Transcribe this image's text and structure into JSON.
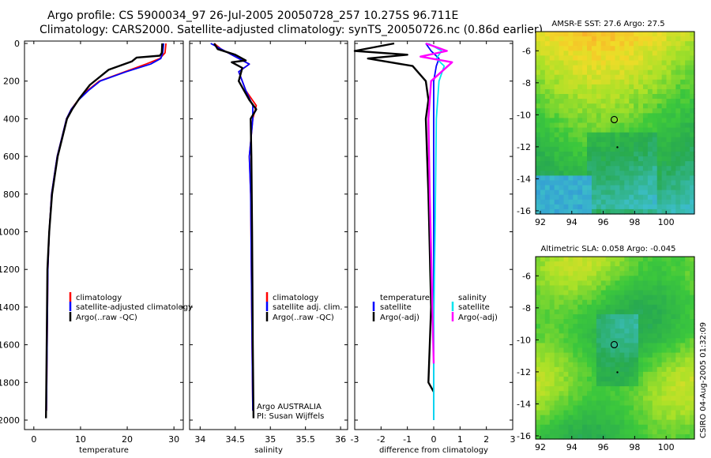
{
  "header": {
    "line1": "Argo profile: CS 5900034_97 26-Jul-2005 20050728_257 10.275S 96.711E",
    "line2": "Climatology: CARS2000. Satellite-adjusted climatology: synTS_20050726.nc (0.86d earlier)"
  },
  "colors": {
    "climatology": "#ff0000",
    "satellite": "#0000ff",
    "argo": "#000000",
    "sal_satellite": "#00e5ee",
    "sal_argo": "#ff00ff"
  },
  "chart_data": [
    {
      "type": "line",
      "id": "temp",
      "xlabel": "temperature",
      "ylabel": "",
      "xlim": [
        -2,
        32
      ],
      "ylim": [
        2050,
        0
      ],
      "xticks": [
        "0",
        "10",
        "20",
        "30"
      ],
      "xtick_values": [
        0,
        10,
        20,
        30
      ],
      "yticks": [
        "0",
        "200",
        "400",
        "600",
        "800",
        "1000",
        "1200",
        "1400",
        "1600",
        "1800",
        "2000"
      ],
      "legend": [
        "climatology",
        "satellite-adjusted climatology",
        "Argo(..raw -QC)"
      ],
      "series": [
        {
          "name": "climatology",
          "color": "#ff0000",
          "x": [
            28.3,
            28.1,
            27.0,
            24.0,
            19.5,
            14.0,
            11.5,
            9.5,
            8.0,
            7.0,
            6.0,
            5.0,
            4.4,
            3.8,
            3.3,
            3.0,
            2.7
          ],
          "y": [
            0,
            50,
            80,
            110,
            150,
            200,
            250,
            300,
            350,
            400,
            500,
            600,
            700,
            800,
            1000,
            1200,
            1950
          ]
        },
        {
          "name": "satellite",
          "color": "#0000ff",
          "x": [
            27.8,
            27.6,
            27.2,
            25.0,
            19.8,
            14.2,
            11.7,
            9.6,
            8.0,
            7.0,
            6.0,
            5.0,
            4.4,
            3.8,
            3.3,
            3.0,
            2.7
          ],
          "y": [
            0,
            50,
            80,
            110,
            150,
            200,
            250,
            300,
            350,
            400,
            500,
            600,
            700,
            800,
            1000,
            1200,
            1950
          ]
        },
        {
          "name": "Argo",
          "color": "#000000",
          "x": [
            27.5,
            27.4,
            27.0,
            22.0,
            21.0,
            16.0,
            12.0,
            9.8,
            8.2,
            7.1,
            6.1,
            5.1,
            4.5,
            3.9,
            3.3,
            2.9,
            2.6
          ],
          "y": [
            0,
            50,
            65,
            75,
            95,
            140,
            220,
            290,
            350,
            400,
            500,
            600,
            700,
            800,
            1000,
            1200,
            1990
          ]
        }
      ]
    },
    {
      "type": "line",
      "id": "sal",
      "xlabel": "salinity",
      "ylabel": "",
      "xlim": [
        33.85,
        36.1
      ],
      "ylim": [
        2050,
        0
      ],
      "xticks": [
        "34",
        "34.5",
        "35",
        "35.5",
        "36"
      ],
      "xtick_values": [
        34,
        34.5,
        35,
        35.5,
        36
      ],
      "legend": [
        "climatology",
        "satellite adj. clim.",
        "Argo(..raw -QC)"
      ],
      "annotation": [
        "Argo AUSTRALIA",
        "PI: Susan Wijffels"
      ],
      "series": [
        {
          "name": "climatology",
          "color": "#ff0000",
          "x": [
            34.2,
            34.3,
            34.45,
            34.6,
            34.7,
            34.55,
            34.65,
            34.8,
            34.75,
            34.7,
            34.72,
            34.73,
            34.74,
            34.75
          ],
          "y": [
            0,
            30,
            60,
            90,
            110,
            150,
            250,
            330,
            400,
            600,
            800,
            1200,
            1600,
            1950
          ]
        },
        {
          "name": "satellite",
          "color": "#0000ff",
          "x": [
            34.15,
            34.3,
            34.45,
            34.6,
            34.7,
            34.55,
            34.65,
            34.75,
            34.75,
            34.7,
            34.72,
            34.73,
            34.74,
            34.75
          ],
          "y": [
            0,
            30,
            60,
            90,
            110,
            150,
            250,
            330,
            400,
            600,
            800,
            1200,
            1600,
            1950
          ]
        },
        {
          "name": "Argo",
          "color": "#000000",
          "x": [
            34.2,
            34.25,
            34.5,
            34.65,
            34.45,
            34.6,
            34.55,
            34.7,
            34.8,
            34.72,
            34.73,
            34.74,
            34.75,
            34.76
          ],
          "y": [
            0,
            30,
            60,
            90,
            100,
            130,
            200,
            300,
            350,
            400,
            600,
            1000,
            1600,
            1990
          ]
        }
      ]
    },
    {
      "type": "line",
      "id": "diff",
      "xlabel": "difference from climatology",
      "ylabel": "",
      "xlim": [
        -3,
        3
      ],
      "ylim": [
        2050,
        0
      ],
      "xticks": [
        "-3",
        "-2",
        "-1",
        "0",
        "1",
        "2",
        "3"
      ],
      "xtick_values": [
        -3,
        -2,
        -1,
        0,
        1,
        2,
        3
      ],
      "legend_left": [
        "temperature",
        "satellite",
        "Argo(-adj)"
      ],
      "legend_right": [
        "salinity",
        "satellite",
        "Argo(-adj)"
      ],
      "series": [
        {
          "name": "temperature satellite",
          "color": "#0000ff",
          "x": [
            -0.3,
            -0.1,
            0.2,
            0.1,
            0.0,
            0.0,
            0.0,
            0.0
          ],
          "y": [
            0,
            40,
            80,
            120,
            200,
            400,
            1000,
            2000
          ]
        },
        {
          "name": "temperature Argo(-adj)",
          "color": "#000000",
          "x": [
            -1.5,
            -3.0,
            -1.0,
            -2.5,
            -0.8,
            -0.3,
            -0.2,
            -0.3,
            -0.2,
            -0.1,
            -0.2,
            0.0
          ],
          "y": [
            0,
            40,
            60,
            80,
            120,
            200,
            300,
            400,
            800,
            1400,
            1800,
            1850
          ]
        },
        {
          "name": "salinity satellite",
          "color": "#00e5ee",
          "x": [
            -0.2,
            0.3,
            0.1,
            0.4,
            0.2,
            0.1,
            0.05,
            0.0,
            0.0
          ],
          "y": [
            0,
            40,
            80,
            120,
            200,
            400,
            1000,
            1500,
            2000
          ]
        },
        {
          "name": "salinity Argo(-adj)",
          "color": "#ff00ff",
          "x": [
            -0.3,
            0.5,
            -0.5,
            0.7,
            -0.1,
            -0.2,
            -0.15,
            -0.05,
            0.0
          ],
          "y": [
            0,
            40,
            70,
            100,
            200,
            400,
            800,
            1400,
            1700
          ]
        }
      ]
    },
    {
      "type": "heatmap",
      "id": "sst",
      "title": "AMSR-E SST: 27.6 Argo: 27.5",
      "xlim": [
        91.7,
        101.8
      ],
      "ylim": [
        -16.2,
        -4.8
      ],
      "xticks": [
        "92",
        "94",
        "96",
        "98",
        "100"
      ],
      "xtick_values": [
        92,
        94,
        96,
        98,
        100
      ],
      "yticks": [
        "-6",
        "-8",
        "-10",
        "-12",
        "-14",
        "-16"
      ],
      "ytick_values": [
        -6,
        -8,
        -10,
        -12,
        -14,
        -16
      ],
      "marker": {
        "lon": 96.7,
        "lat": -10.3
      }
    },
    {
      "type": "heatmap",
      "id": "sla",
      "title": "Altimetric SLA: 0.058 Argo: -0.045",
      "xlim": [
        91.7,
        101.8
      ],
      "ylim": [
        -16.2,
        -4.8
      ],
      "xticks": [
        "92",
        "94",
        "96",
        "98",
        "100"
      ],
      "xtick_values": [
        92,
        94,
        96,
        98,
        100
      ],
      "yticks": [
        "-6",
        "-8",
        "-10",
        "-12",
        "-14",
        "-16"
      ],
      "ytick_values": [
        -6,
        -8,
        -10,
        -12,
        -14,
        -16
      ],
      "marker": {
        "lon": 96.7,
        "lat": -10.3
      }
    }
  ],
  "footer": {
    "stamp": "CSIRO 04-Aug-2005 01:32:09"
  }
}
